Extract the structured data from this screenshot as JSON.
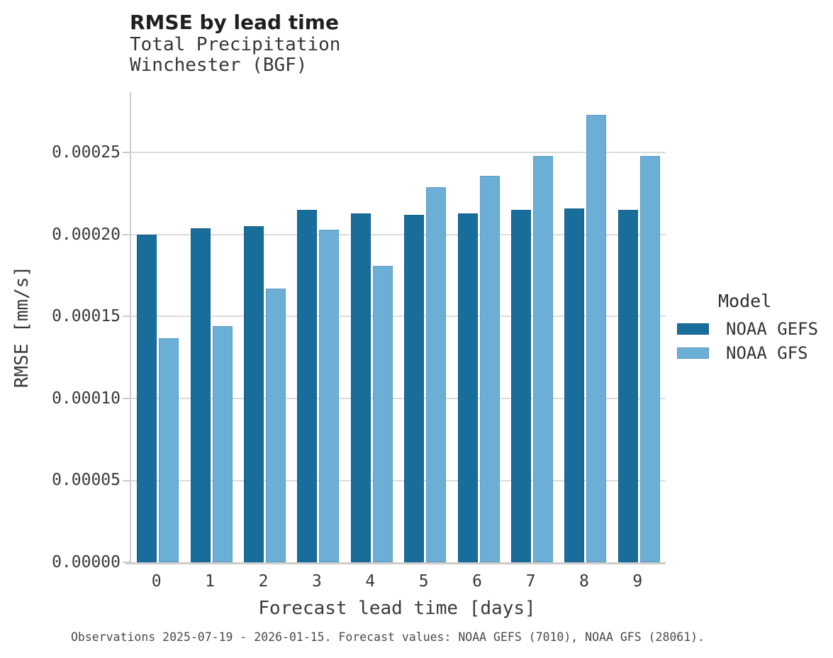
{
  "header": {
    "title": "RMSE by lead time",
    "subtitle_line1": "Total Precipitation",
    "subtitle_line2": "Winchester (BGF)"
  },
  "caption": "Observations 2025-07-19 - 2026-01-15. Forecast values: NOAA GEFS (7010), NOAA GFS (28061).",
  "colors": {
    "noaa_gefs": "#186d9a",
    "noaa_gfs": "#6baed6",
    "gridline": "#dcdcdc",
    "axis_spine": "#cccccc"
  },
  "chart_data": {
    "type": "bar",
    "title": "RMSE by lead time",
    "subtitle": [
      "Total Precipitation",
      "Winchester (BGF)"
    ],
    "xlabel": "Forecast lead time [days]",
    "ylabel": "RMSE [mm/s]",
    "categories": [
      "0",
      "1",
      "2",
      "3",
      "4",
      "5",
      "6",
      "7",
      "8",
      "9"
    ],
    "series": [
      {
        "name": "NOAA GEFS",
        "color": "#186d9a",
        "values": [
          0.0002,
          0.000204,
          0.000205,
          0.000215,
          0.000213,
          0.000212,
          0.000213,
          0.000215,
          0.000216,
          0.000215
        ]
      },
      {
        "name": "NOAA GFS",
        "color": "#6baed6",
        "values": [
          0.000137,
          0.000144,
          0.000167,
          0.000203,
          0.000181,
          0.000229,
          0.000236,
          0.000248,
          0.000273,
          0.000248
        ]
      }
    ],
    "ylim": [
      0,
      0.000287
    ],
    "yticks": [
      0,
      5e-05,
      0.0001,
      0.00015,
      0.0002,
      0.00025
    ],
    "ytick_labels": [
      "0.00000",
      "0.00005",
      "0.00010",
      "0.00015",
      "0.00020",
      "0.00025"
    ],
    "grid": "horizontal",
    "legend_title": "Model",
    "legend_position": "right"
  }
}
